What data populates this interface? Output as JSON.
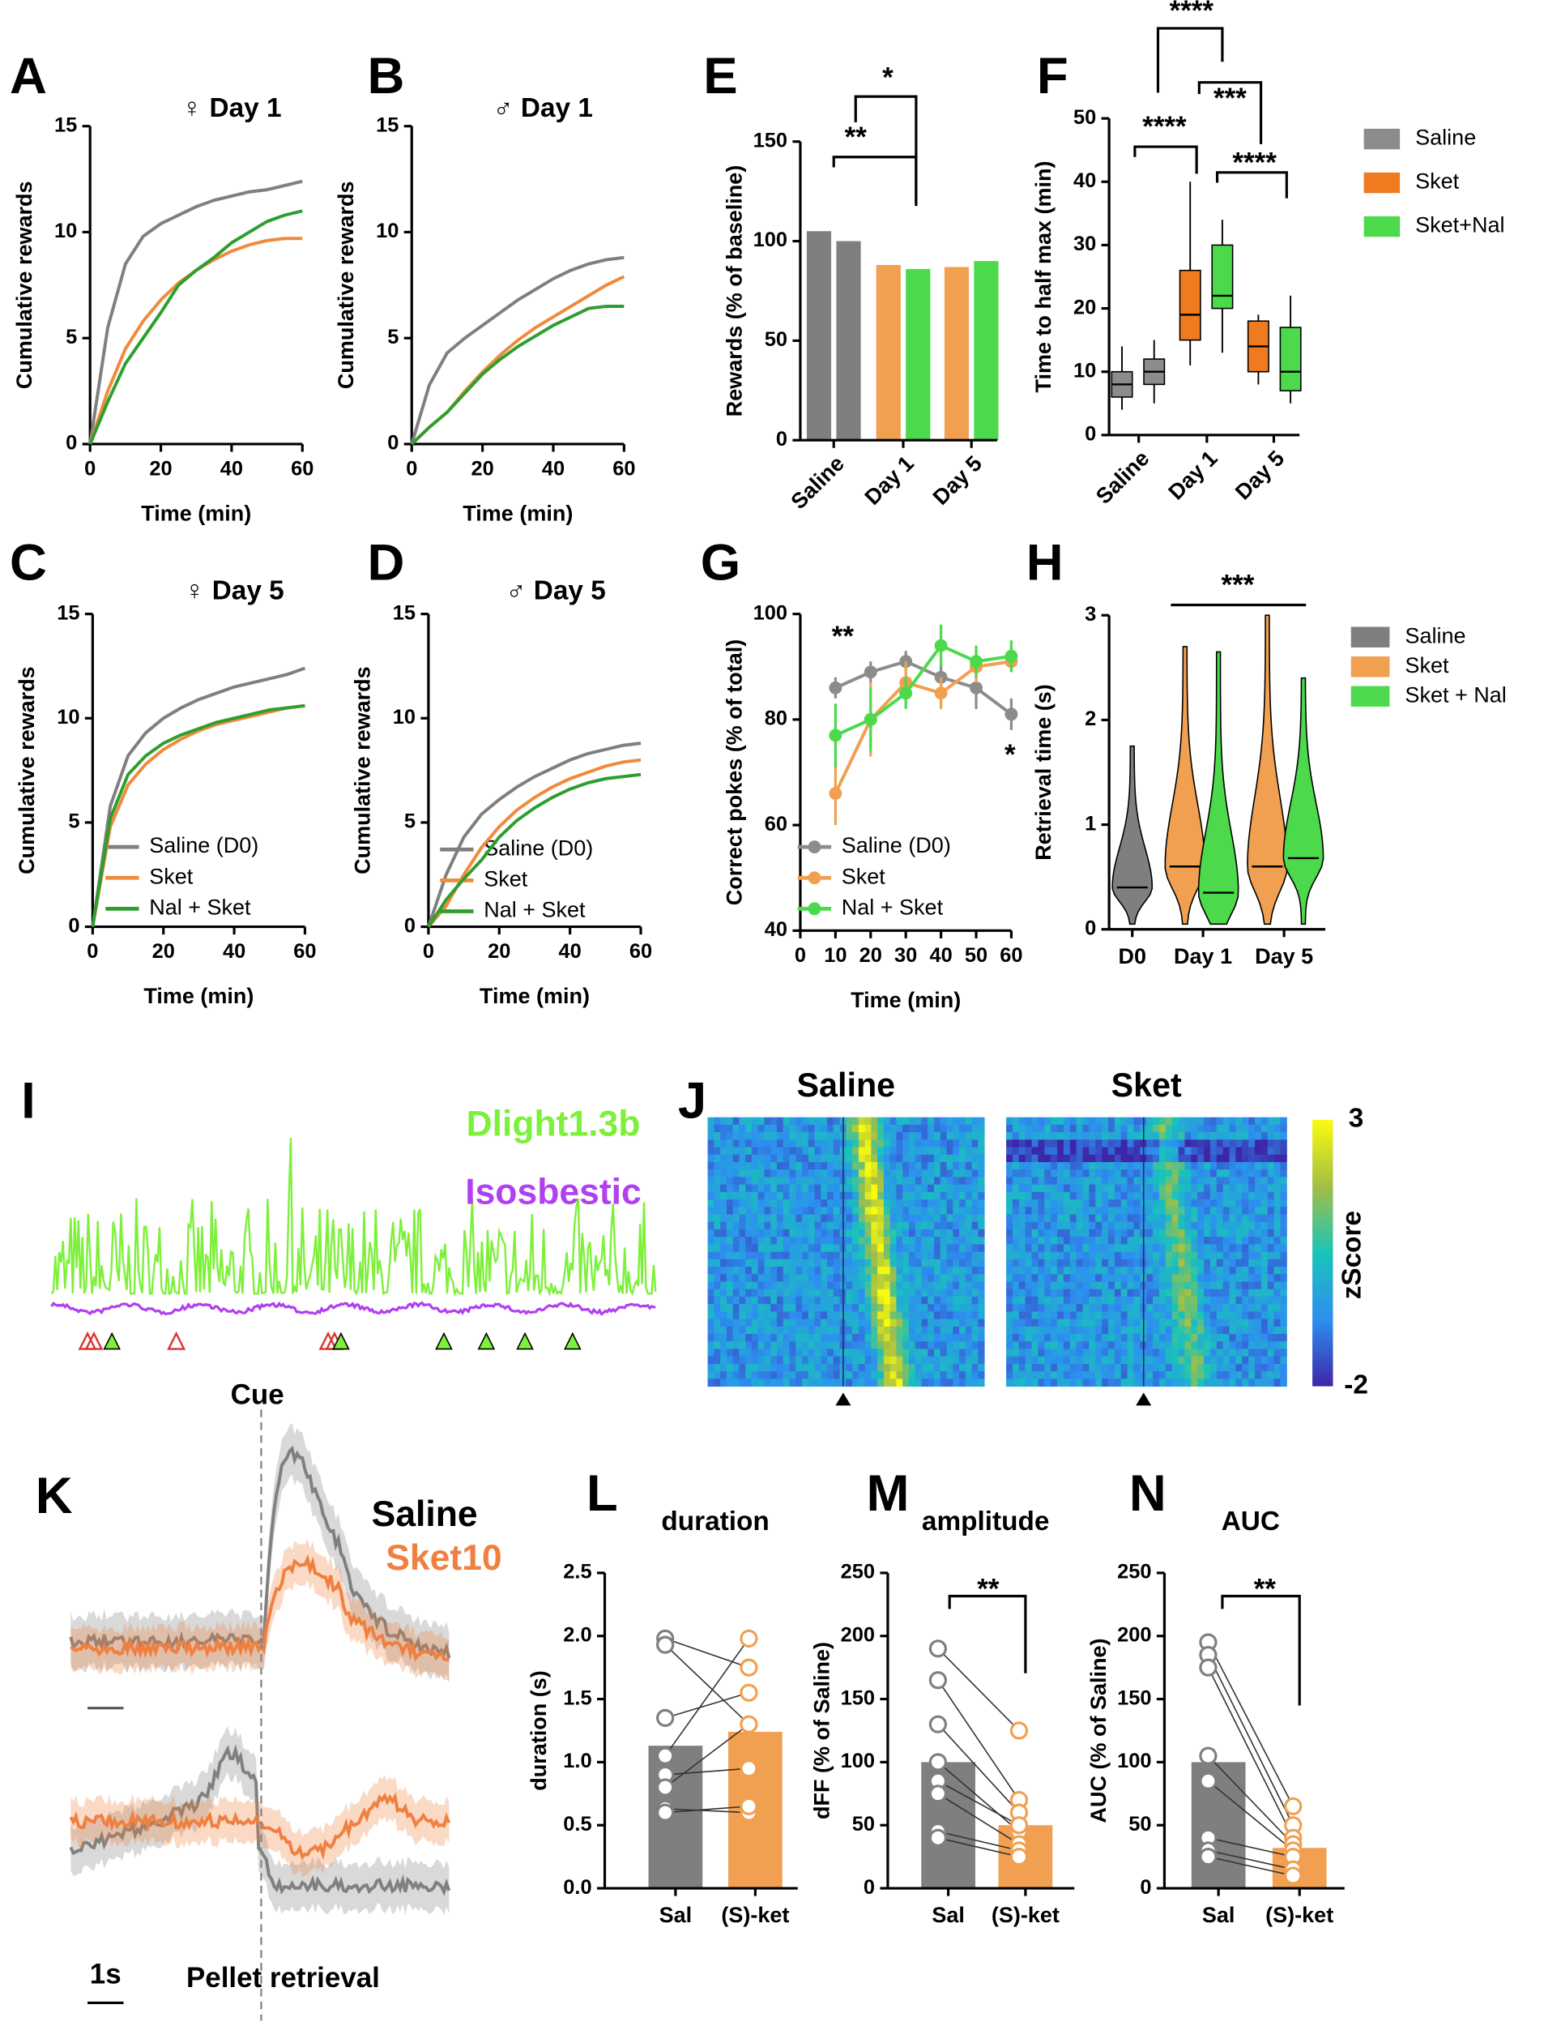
{
  "chart_data": [
    {
      "panel": "A",
      "type": "line",
      "title": "♀ Day 1",
      "xlabel": "Time (min)",
      "ylabel": "Cumulative rewards",
      "x": [
        0,
        5,
        10,
        15,
        20,
        25,
        30,
        35,
        40,
        45,
        50,
        55,
        60
      ],
      "xlim": [
        0,
        60
      ],
      "xticks": [
        0,
        20,
        40,
        60
      ],
      "ylim": [
        0,
        15
      ],
      "yticks": [
        0,
        5,
        10,
        15
      ],
      "series": [
        {
          "color": "#7f7f7f",
          "values": [
            0,
            5.5,
            8.5,
            9.8,
            10.4,
            10.8,
            11.2,
            11.5,
            11.7,
            11.9,
            12.0,
            12.2,
            12.4
          ]
        },
        {
          "color": "#f08a3c",
          "values": [
            0,
            2.5,
            4.5,
            5.8,
            6.8,
            7.6,
            8.2,
            8.7,
            9.1,
            9.4,
            9.6,
            9.7,
            9.7
          ]
        },
        {
          "color": "#2e9e2e",
          "values": [
            0,
            2.0,
            3.8,
            5.0,
            6.2,
            7.5,
            8.2,
            8.8,
            9.5,
            10.0,
            10.5,
            10.8,
            11.0
          ]
        }
      ]
    },
    {
      "panel": "B",
      "type": "line",
      "title": "♂ Day 1",
      "xlabel": "Time (min)",
      "ylabel": "Cumulative rewards",
      "x": [
        0,
        5,
        10,
        15,
        20,
        25,
        30,
        35,
        40,
        45,
        50,
        55,
        60
      ],
      "xlim": [
        0,
        60
      ],
      "xticks": [
        0,
        20,
        40,
        60
      ],
      "ylim": [
        0,
        15
      ],
      "yticks": [
        0,
        5,
        10,
        15
      ],
      "series": [
        {
          "color": "#7f7f7f",
          "values": [
            0,
            2.8,
            4.3,
            5.0,
            5.6,
            6.2,
            6.8,
            7.3,
            7.8,
            8.2,
            8.5,
            8.7,
            8.8
          ]
        },
        {
          "color": "#f08a3c",
          "values": [
            0,
            0.8,
            1.5,
            2.5,
            3.4,
            4.2,
            4.9,
            5.5,
            6.0,
            6.5,
            7.0,
            7.5,
            7.9
          ]
        },
        {
          "color": "#2e9e2e",
          "values": [
            0,
            0.8,
            1.5,
            2.4,
            3.3,
            4.0,
            4.6,
            5.1,
            5.6,
            6.0,
            6.4,
            6.5,
            6.5
          ]
        }
      ]
    },
    {
      "panel": "C",
      "type": "line",
      "title": "♀ Day 5",
      "xlabel": "Time (min)",
      "ylabel": "Cumulative rewards",
      "x": [
        0,
        5,
        10,
        15,
        20,
        25,
        30,
        35,
        40,
        45,
        50,
        55,
        60
      ],
      "xlim": [
        0,
        60
      ],
      "xticks": [
        0,
        20,
        40,
        60
      ],
      "ylim": [
        0,
        15
      ],
      "yticks": [
        0,
        5,
        10,
        15
      ],
      "series": [
        {
          "name": "Saline (D0)",
          "color": "#7f7f7f",
          "values": [
            0,
            5.8,
            8.2,
            9.3,
            10.0,
            10.5,
            10.9,
            11.2,
            11.5,
            11.7,
            11.9,
            12.1,
            12.4
          ]
        },
        {
          "name": "Sket",
          "color": "#f08a3c",
          "values": [
            0,
            4.8,
            6.8,
            7.8,
            8.5,
            9.0,
            9.4,
            9.7,
            9.9,
            10.1,
            10.3,
            10.5,
            10.6
          ]
        },
        {
          "name": "Nal + Sket",
          "color": "#2e9e2e",
          "values": [
            0,
            5.2,
            7.3,
            8.2,
            8.8,
            9.2,
            9.5,
            9.8,
            10.0,
            10.2,
            10.4,
            10.5,
            10.6
          ]
        }
      ]
    },
    {
      "panel": "D",
      "type": "line",
      "title": "♂ Day 5",
      "xlabel": "Time (min)",
      "ylabel": "Cumulative rewards",
      "x": [
        0,
        5,
        10,
        15,
        20,
        25,
        30,
        35,
        40,
        45,
        50,
        55,
        60
      ],
      "xlim": [
        0,
        60
      ],
      "xticks": [
        0,
        20,
        40,
        60
      ],
      "ylim": [
        0,
        15
      ],
      "yticks": [
        0,
        5,
        10,
        15
      ],
      "series": [
        {
          "name": "Saline (D0)",
          "color": "#7f7f7f",
          "values": [
            0,
            2.5,
            4.3,
            5.4,
            6.1,
            6.7,
            7.2,
            7.6,
            8.0,
            8.3,
            8.5,
            8.7,
            8.8
          ]
        },
        {
          "name": "Sket",
          "color": "#f08a3c",
          "values": [
            0,
            1.0,
            2.5,
            3.8,
            4.8,
            5.6,
            6.2,
            6.7,
            7.1,
            7.4,
            7.7,
            7.9,
            8.0
          ]
        },
        {
          "name": "Nal + Sket",
          "color": "#2e9e2e",
          "values": [
            0,
            1.3,
            2.3,
            3.2,
            4.3,
            5.1,
            5.7,
            6.2,
            6.6,
            6.9,
            7.1,
            7.2,
            7.3
          ]
        }
      ]
    },
    {
      "panel": "E",
      "type": "bar",
      "ylabel": "Rewards (% of baseline)",
      "categories": [
        "Saline",
        "Day 1",
        "Day 5"
      ],
      "ylim": [
        0,
        150
      ],
      "yticks": [
        0,
        50,
        100,
        150
      ],
      "series": [
        {
          "colors": [
            "#7f7f7f",
            "#f0a050",
            "#f0a050"
          ],
          "values": [
            105,
            88,
            87
          ]
        },
        {
          "colors": [
            "#7f7f7f",
            "#4cd94c",
            "#4cd94c"
          ],
          "values": [
            100,
            86,
            90
          ]
        }
      ],
      "annotations": [
        "**",
        "*"
      ]
    },
    {
      "panel": "F",
      "type": "box",
      "ylabel": "Time to half max (min)",
      "categories": [
        "Saline",
        "Day 1",
        "Day 5"
      ],
      "ylim": [
        0,
        50
      ],
      "yticks": [
        0,
        10,
        20,
        30,
        40,
        50
      ],
      "boxes": [
        {
          "color": "#8c8c8c",
          "min": 4,
          "q1": 6,
          "median": 8,
          "q3": 10,
          "max": 14
        },
        {
          "color": "#8c8c8c",
          "min": 5,
          "q1": 8,
          "median": 10,
          "q3": 12,
          "max": 15
        },
        {
          "color": "#f07a20",
          "min": 11,
          "q1": 15,
          "median": 19,
          "q3": 26,
          "max": 40
        },
        {
          "color": "#4cd94c",
          "min": 13,
          "q1": 20,
          "median": 22,
          "q3": 30,
          "max": 34
        },
        {
          "color": "#f07a20",
          "min": 8,
          "q1": 10,
          "median": 14,
          "q3": 18,
          "max": 19
        },
        {
          "color": "#4cd94c",
          "min": 5,
          "q1": 7,
          "median": 10,
          "q3": 17,
          "max": 22
        }
      ],
      "legend": [
        {
          "name": "Saline",
          "color": "#8c8c8c"
        },
        {
          "name": "Sket",
          "color": "#f07a20"
        },
        {
          "name": "Sket+Nal",
          "color": "#4cd94c"
        }
      ],
      "annotations": [
        "****",
        "***",
        "****",
        "****"
      ]
    },
    {
      "panel": "G",
      "type": "line",
      "xlabel": "Time (min)",
      "ylabel": "Correct pokes (% of total)",
      "x": [
        10,
        20,
        30,
        40,
        50,
        60
      ],
      "xlim": [
        0,
        60
      ],
      "xticks": [
        0,
        10,
        20,
        30,
        40,
        50,
        60
      ],
      "ylim": [
        40,
        100
      ],
      "yticks": [
        40,
        60,
        80,
        100
      ],
      "series": [
        {
          "name": "Saline (D0)",
          "color": "#8c8c8c",
          "values": [
            86,
            89,
            91,
            88,
            86,
            81
          ],
          "errors": [
            2,
            2,
            2,
            3,
            4,
            3
          ]
        },
        {
          "name": "Sket",
          "color": "#f0a050",
          "values": [
            66,
            80,
            87,
            85,
            90,
            91
          ],
          "errors": [
            6,
            7,
            4,
            3,
            3,
            2
          ]
        },
        {
          "name": "Nal + Sket",
          "color": "#4cd94c",
          "values": [
            77,
            80,
            85,
            94,
            91,
            92
          ],
          "errors": [
            6,
            6,
            3,
            4,
            3,
            3
          ]
        }
      ],
      "annotations": [
        "**",
        "*"
      ]
    },
    {
      "panel": "H",
      "type": "violin",
      "ylabel": "Retrieval time (s)",
      "categories": [
        "D0",
        "Day 1",
        "Day 5"
      ],
      "ylim": [
        0,
        3
      ],
      "yticks": [
        0,
        1,
        2,
        3
      ],
      "violins": [
        {
          "color": "#7f7f7f",
          "min": 0.05,
          "median": 0.4,
          "max": 1.75
        },
        {
          "color": "#f0a050",
          "min": 0.05,
          "median": 0.6,
          "max": 2.7
        },
        {
          "color": "#4cd94c",
          "min": 0.05,
          "median": 0.35,
          "max": 2.65
        },
        {
          "color": "#f0a050",
          "min": 0.05,
          "median": 0.6,
          "max": 3.0
        },
        {
          "color": "#4cd94c",
          "min": 0.05,
          "median": 0.68,
          "max": 2.4
        }
      ],
      "legend": [
        {
          "name": "Saline",
          "color": "#7f7f7f"
        },
        {
          "name": "Sket",
          "color": "#f0a050"
        },
        {
          "name": "Sket + Nal",
          "color": "#4cd94c"
        }
      ],
      "annotations": [
        "***"
      ]
    },
    {
      "panel": "I",
      "type": "trace",
      "labels": [
        "Dlight1.3b",
        "Isosbestic"
      ]
    },
    {
      "panel": "J",
      "type": "heatmap",
      "titles": [
        "Saline",
        "Sket"
      ],
      "colorbar_label": "zScore",
      "colorbar_lim": [
        -2,
        3
      ],
      "colorbar_ticks": [
        3,
        -2
      ]
    },
    {
      "panel": "K",
      "type": "trace",
      "labels": [
        "Cue",
        "Saline",
        "Sket10",
        "1s",
        "Pellet retrieval"
      ]
    },
    {
      "panel": "L",
      "type": "paired",
      "title": "duration",
      "ylabel": "duration (s)",
      "categories": [
        "Sal",
        "(S)-ket"
      ],
      "values": [
        1.13,
        1.24
      ],
      "colors": [
        "#7f7f7f",
        "#f0a050"
      ],
      "ylim": [
        0,
        2.5
      ],
      "yticks": [
        {
          "value": 0,
          "label": "0.0"
        },
        0.5,
        {
          "value": 1,
          "label": "1.0"
        },
        1.5,
        {
          "value": 2,
          "label": "2.0"
        },
        2.5
      ],
      "points": [
        [
          1.98,
          1.93,
          1.35,
          1.05,
          0.9,
          0.8,
          0.63,
          0.6
        ],
        [
          1.75,
          1.3,
          1.55,
          1.98,
          0.95,
          1.3,
          0.6,
          0.65
        ]
      ],
      "annotations": []
    },
    {
      "panel": "M",
      "type": "paired",
      "title": "amplitude",
      "ylabel": "dFF (% of Saline)",
      "categories": [
        "Sal",
        "(S)-ket"
      ],
      "values": [
        100,
        50
      ],
      "colors": [
        "#7f7f7f",
        "#f0a050"
      ],
      "ylim": [
        0,
        250
      ],
      "yticks": [
        0,
        50,
        100,
        150,
        200,
        250
      ],
      "points": [
        [
          190,
          165,
          130,
          100,
          85,
          75,
          45,
          40
        ],
        [
          125,
          70,
          60,
          45,
          50,
          35,
          30,
          25
        ]
      ],
      "annotations": [
        "**"
      ]
    },
    {
      "panel": "N",
      "type": "paired",
      "title": "AUC",
      "ylabel": "AUC (% of Saline)",
      "categories": [
        "Sal",
        "(S)-ket"
      ],
      "values": [
        100,
        32
      ],
      "colors": [
        "#7f7f7f",
        "#f0a050"
      ],
      "ylim": [
        0,
        250
      ],
      "yticks": [
        0,
        50,
        100,
        150,
        200,
        250
      ],
      "points": [
        [
          195,
          185,
          175,
          105,
          85,
          40,
          30,
          25
        ],
        [
          65,
          50,
          40,
          35,
          30,
          25,
          15,
          10
        ]
      ],
      "annotations": [
        "**"
      ]
    }
  ]
}
